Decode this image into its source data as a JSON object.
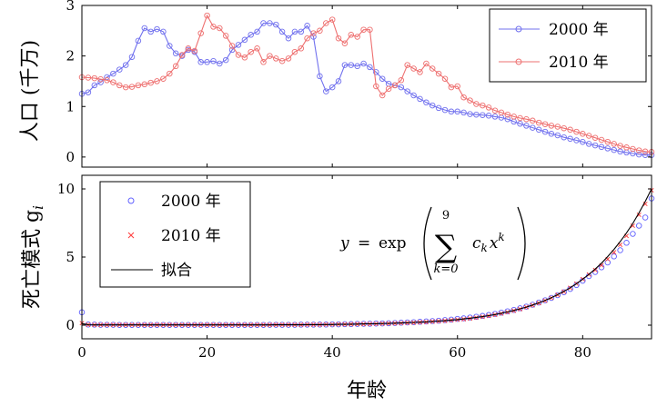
{
  "chart_data": [
    {
      "type": "line",
      "title": "",
      "xlabel": "",
      "ylabel": "人口 (千万)",
      "xlim": [
        0,
        91
      ],
      "ylim": [
        -0.2,
        3.0
      ],
      "yticks": [
        "0",
        "1",
        "2",
        "3"
      ],
      "grid": false,
      "legend_position": "top-right",
      "x": [
        0,
        1,
        2,
        3,
        4,
        5,
        6,
        7,
        8,
        9,
        10,
        11,
        12,
        13,
        14,
        15,
        16,
        17,
        18,
        19,
        20,
        21,
        22,
        23,
        24,
        25,
        26,
        27,
        28,
        29,
        30,
        31,
        32,
        33,
        34,
        35,
        36,
        37,
        38,
        39,
        40,
        41,
        42,
        43,
        44,
        45,
        46,
        47,
        48,
        49,
        50,
        51,
        52,
        53,
        54,
        55,
        56,
        57,
        58,
        59,
        60,
        61,
        62,
        63,
        64,
        65,
        66,
        67,
        68,
        69,
        70,
        71,
        72,
        73,
        74,
        75,
        76,
        77,
        78,
        79,
        80,
        81,
        82,
        83,
        84,
        85,
        86,
        87,
        88,
        89,
        90,
        91
      ],
      "series": [
        {
          "name": "2000 年",
          "color": "#7070ee",
          "marker": "circle",
          "values": [
            1.25,
            1.28,
            1.42,
            1.48,
            1.58,
            1.65,
            1.73,
            1.82,
            1.98,
            2.3,
            2.55,
            2.48,
            2.53,
            2.48,
            2.2,
            2.05,
            2.0,
            2.12,
            2.08,
            1.88,
            1.88,
            1.9,
            1.85,
            1.92,
            2.12,
            2.22,
            2.32,
            2.42,
            2.48,
            2.65,
            2.65,
            2.62,
            2.48,
            2.35,
            2.48,
            2.48,
            2.6,
            2.38,
            1.6,
            1.3,
            1.38,
            1.5,
            1.82,
            1.82,
            1.8,
            1.85,
            1.78,
            1.68,
            1.55,
            1.45,
            1.42,
            1.38,
            1.3,
            1.22,
            1.15,
            1.08,
            1.02,
            0.97,
            0.93,
            0.9,
            0.9,
            0.88,
            0.85,
            0.84,
            0.83,
            0.82,
            0.8,
            0.78,
            0.75,
            0.7,
            0.66,
            0.62,
            0.58,
            0.54,
            0.5,
            0.46,
            0.43,
            0.39,
            0.36,
            0.33,
            0.3,
            0.26,
            0.23,
            0.2,
            0.17,
            0.14,
            0.11,
            0.09,
            0.07,
            0.05,
            0.04,
            0.04
          ]
        },
        {
          "name": "2010 年",
          "color": "#ee7070",
          "marker": "circle",
          "values": [
            1.58,
            1.57,
            1.56,
            1.54,
            1.52,
            1.48,
            1.42,
            1.38,
            1.39,
            1.42,
            1.44,
            1.47,
            1.5,
            1.55,
            1.65,
            1.8,
            2.02,
            2.15,
            2.1,
            2.45,
            2.8,
            2.58,
            2.55,
            2.4,
            2.2,
            2.02,
            1.97,
            2.08,
            2.15,
            1.88,
            2.0,
            1.95,
            1.9,
            1.95,
            2.08,
            2.15,
            2.35,
            2.45,
            2.5,
            2.65,
            2.72,
            2.35,
            2.25,
            2.42,
            2.38,
            2.52,
            2.52,
            1.4,
            1.22,
            1.35,
            1.42,
            1.52,
            1.82,
            1.75,
            1.68,
            1.85,
            1.75,
            1.65,
            1.55,
            1.38,
            1.4,
            1.18,
            1.12,
            1.05,
            1.02,
            0.98,
            0.92,
            0.88,
            0.84,
            0.8,
            0.77,
            0.75,
            0.72,
            0.68,
            0.65,
            0.62,
            0.6,
            0.57,
            0.54,
            0.5,
            0.46,
            0.42,
            0.38,
            0.34,
            0.3,
            0.26,
            0.22,
            0.19,
            0.16,
            0.13,
            0.11,
            0.1
          ]
        }
      ]
    },
    {
      "type": "scatter",
      "title": "",
      "xlabel": "年龄",
      "ylabel": "死亡模式 g",
      "ylabel_sub": "i",
      "xlim": [
        0,
        91
      ],
      "ylim": [
        -1.0,
        11.0
      ],
      "xticks": [
        "0",
        "20",
        "40",
        "60",
        "80"
      ],
      "yticks": [
        "0",
        "5",
        "10"
      ],
      "grid": false,
      "legend_position": "top-left",
      "annotation": {
        "lhs": "y",
        "eq": "=",
        "func": "exp",
        "sum_upper": "9",
        "sum_lower": "k=0",
        "term_c": "c",
        "term_x": "x",
        "sub_k": "k",
        "sup_k": "k"
      },
      "series": [
        {
          "name": "2000 年",
          "color": "#6060ff",
          "marker": "circle",
          "values": [
            0.95,
            0.05,
            0.04,
            0.03,
            0.03,
            0.03,
            0.02,
            0.02,
            0.02,
            0.02,
            0.02,
            0.02,
            0.02,
            0.02,
            0.02,
            0.02,
            0.02,
            0.02,
            0.02,
            0.02,
            0.02,
            0.02,
            0.02,
            0.02,
            0.02,
            0.02,
            0.02,
            0.02,
            0.02,
            0.02,
            0.03,
            0.03,
            0.03,
            0.03,
            0.03,
            0.04,
            0.04,
            0.04,
            0.05,
            0.05,
            0.06,
            0.06,
            0.07,
            0.08,
            0.09,
            0.1,
            0.11,
            0.12,
            0.13,
            0.14,
            0.16,
            0.18,
            0.2,
            0.22,
            0.25,
            0.27,
            0.3,
            0.33,
            0.37,
            0.41,
            0.46,
            0.5,
            0.56,
            0.62,
            0.68,
            0.75,
            0.83,
            0.92,
            1.02,
            1.12,
            1.24,
            1.36,
            1.5,
            1.66,
            1.83,
            2.0,
            2.2,
            2.42,
            2.66,
            2.95,
            3.26,
            3.6,
            3.9,
            4.25,
            4.6,
            5.05,
            5.5,
            6.05,
            6.7,
            7.3,
            7.9,
            9.3
          ]
        },
        {
          "name": "2010 年",
          "color": "#ff4040",
          "marker": "cross",
          "values": [
            0.15,
            0.03,
            0.02,
            0.02,
            0.02,
            0.02,
            0.02,
            0.02,
            0.02,
            0.02,
            0.02,
            0.02,
            0.02,
            0.02,
            0.02,
            0.02,
            0.02,
            0.02,
            0.02,
            0.02,
            0.02,
            0.02,
            0.02,
            0.02,
            0.02,
            0.02,
            0.02,
            0.02,
            0.02,
            0.02,
            0.02,
            0.03,
            0.03,
            0.03,
            0.03,
            0.03,
            0.04,
            0.04,
            0.04,
            0.05,
            0.05,
            0.06,
            0.06,
            0.07,
            0.08,
            0.08,
            0.09,
            0.1,
            0.11,
            0.12,
            0.14,
            0.15,
            0.17,
            0.19,
            0.21,
            0.23,
            0.26,
            0.29,
            0.32,
            0.36,
            0.4,
            0.44,
            0.49,
            0.55,
            0.61,
            0.68,
            0.76,
            0.85,
            0.95,
            1.06,
            1.18,
            1.32,
            1.46,
            1.62,
            1.8,
            2.0,
            2.22,
            2.46,
            2.74,
            3.05,
            3.38,
            3.72,
            4.05,
            4.4,
            4.85,
            5.35,
            5.9,
            6.55,
            7.3,
            8.1,
            8.9,
            9.9
          ]
        },
        {
          "name": "拟合",
          "color": "#000000",
          "style": "line",
          "values": [
            0.12,
            0.03,
            0.02,
            0.02,
            0.02,
            0.02,
            0.02,
            0.02,
            0.02,
            0.02,
            0.02,
            0.02,
            0.02,
            0.02,
            0.02,
            0.02,
            0.02,
            0.02,
            0.02,
            0.02,
            0.02,
            0.02,
            0.02,
            0.02,
            0.02,
            0.02,
            0.02,
            0.02,
            0.02,
            0.02,
            0.02,
            0.03,
            0.03,
            0.03,
            0.03,
            0.03,
            0.04,
            0.04,
            0.04,
            0.05,
            0.05,
            0.06,
            0.06,
            0.07,
            0.08,
            0.09,
            0.1,
            0.11,
            0.12,
            0.13,
            0.15,
            0.16,
            0.18,
            0.2,
            0.22,
            0.24,
            0.27,
            0.3,
            0.33,
            0.37,
            0.41,
            0.46,
            0.51,
            0.57,
            0.63,
            0.7,
            0.78,
            0.87,
            0.97,
            1.08,
            1.2,
            1.33,
            1.48,
            1.64,
            1.82,
            2.02,
            2.24,
            2.48,
            2.75,
            3.04,
            3.37,
            3.73,
            4.12,
            4.55,
            5.03,
            5.56,
            6.14,
            6.77,
            7.47,
            8.24,
            9.08,
            10.0
          ]
        }
      ]
    }
  ]
}
